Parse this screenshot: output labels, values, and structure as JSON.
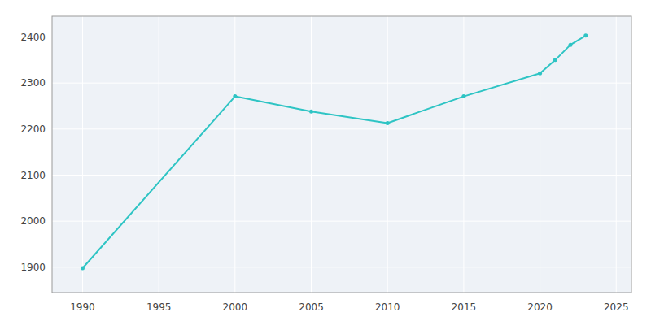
{
  "chart_data": {
    "type": "line",
    "x": [
      1990,
      2000,
      2005,
      2010,
      2015,
      2020,
      2021,
      2022,
      2023
    ],
    "values": [
      1898,
      2271,
      2238,
      2213,
      2271,
      2321,
      2350,
      2383,
      2403
    ],
    "color": "#2EC4C4",
    "marker": "circle",
    "xlim": [
      1988,
      2026
    ],
    "ylim": [
      1845,
      2445
    ],
    "xticks": [
      1990,
      1995,
      2000,
      2005,
      2010,
      2015,
      2020,
      2025
    ],
    "yticks": [
      1900,
      2000,
      2100,
      2200,
      2300,
      2400
    ],
    "grid": true
  }
}
